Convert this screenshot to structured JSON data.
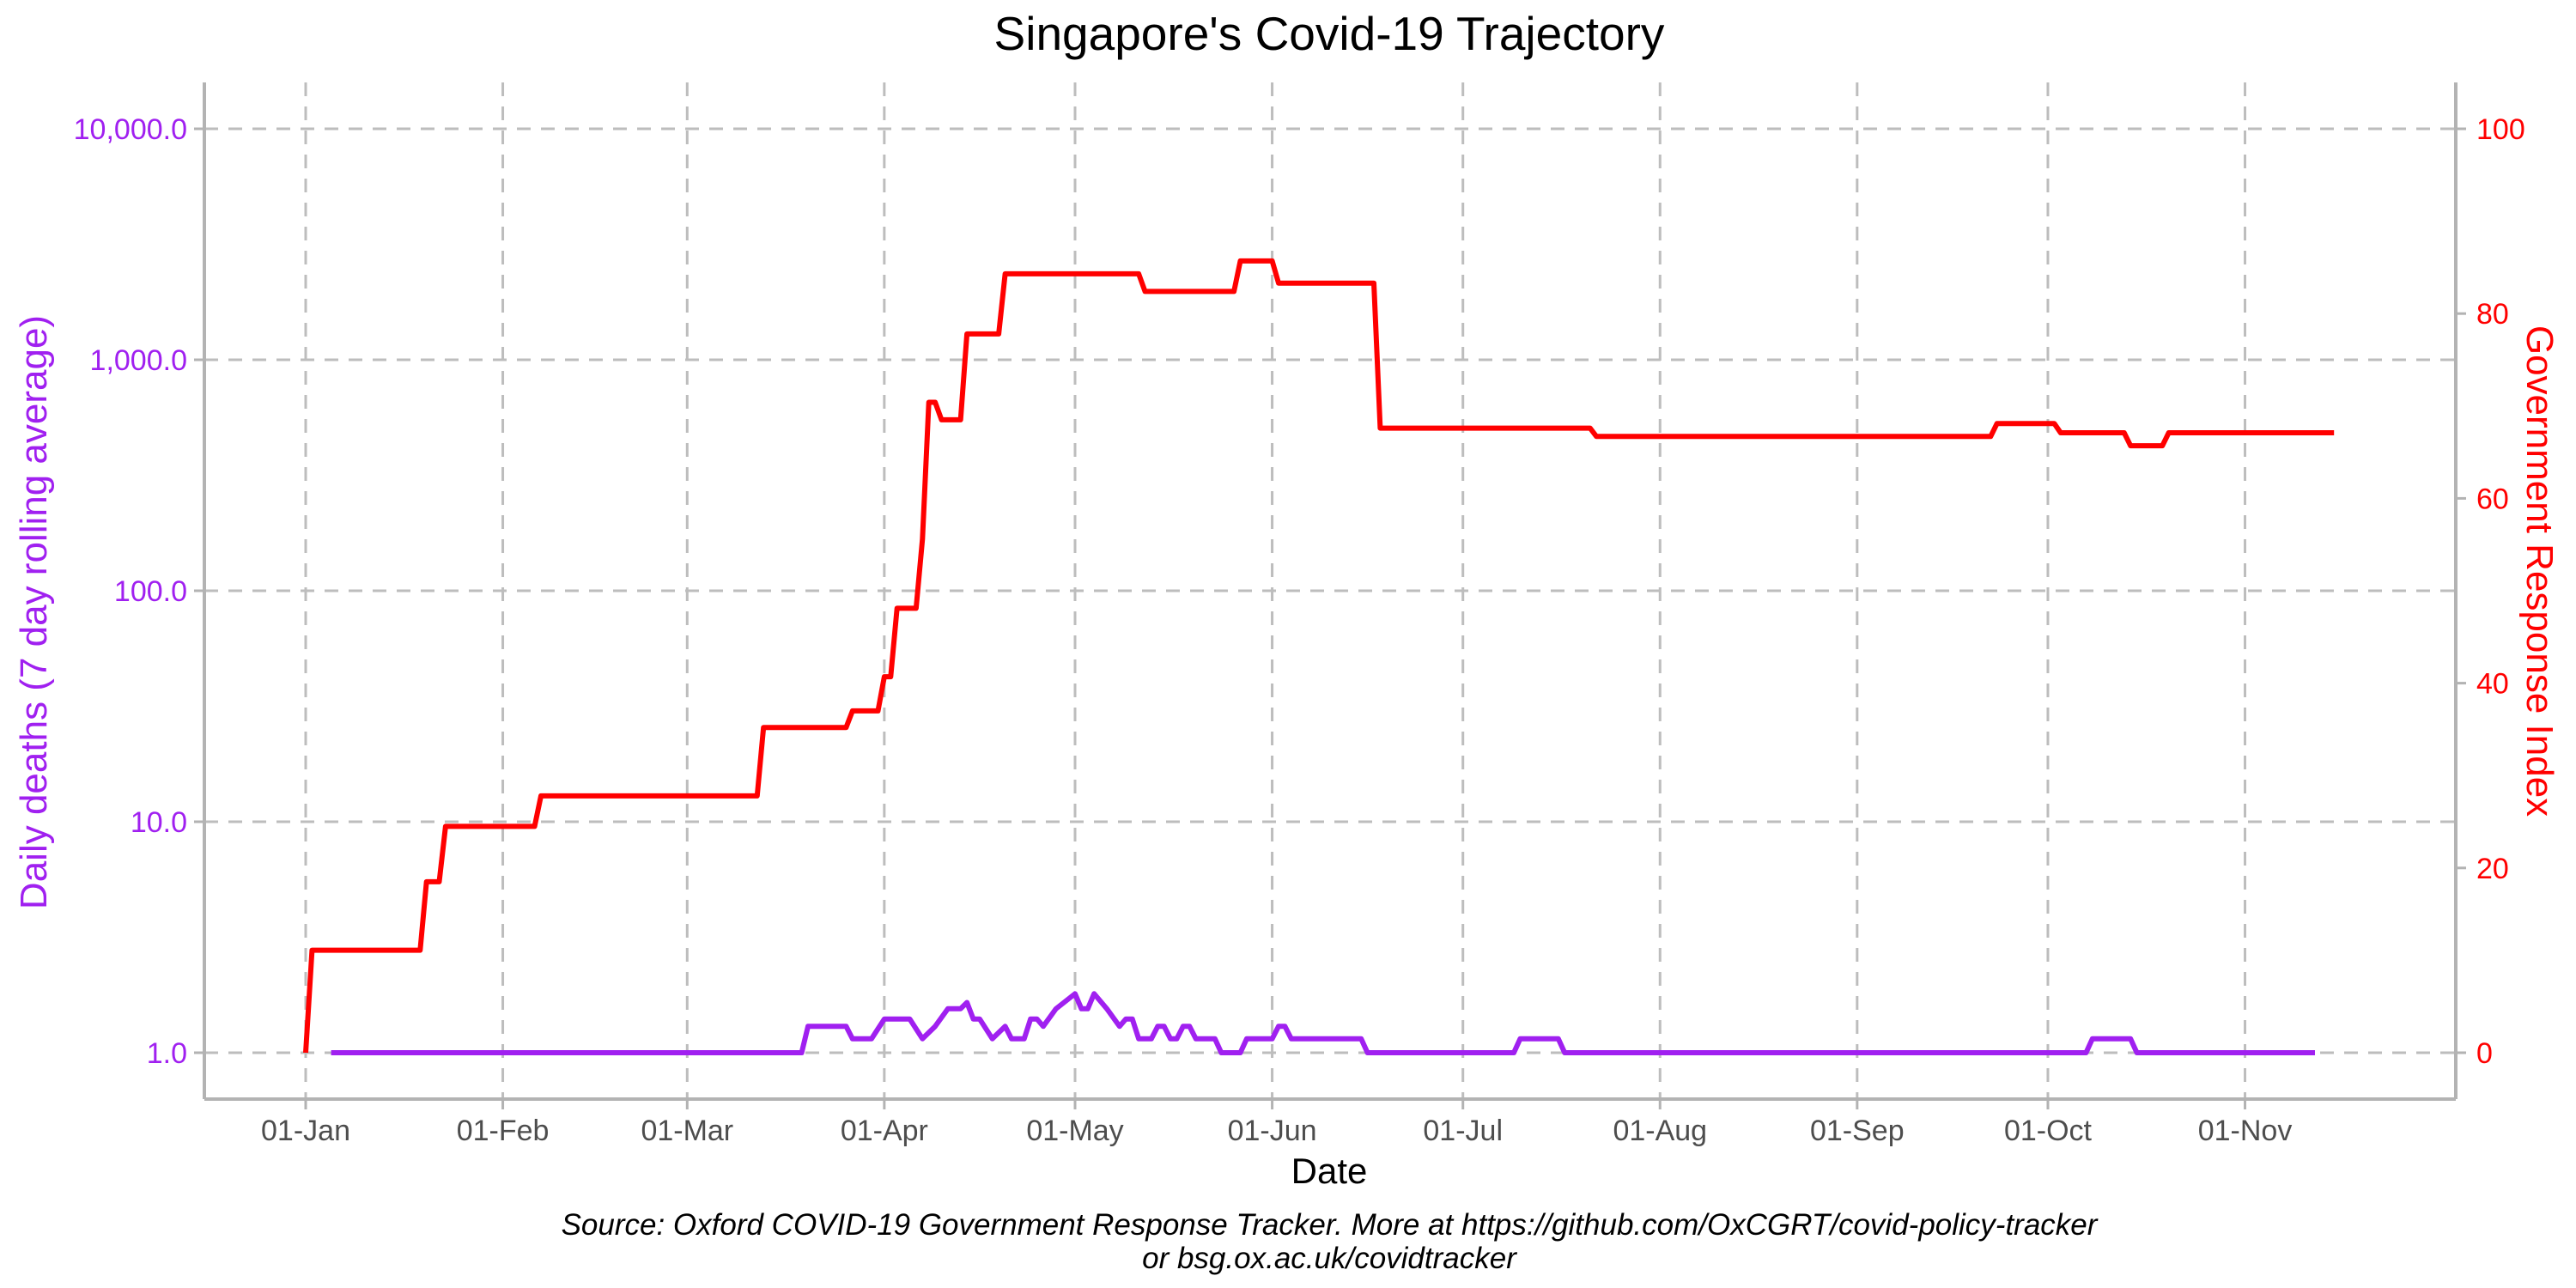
{
  "chart_data": {
    "type": "line",
    "title": "Singapore's Covid-19 Trajectory",
    "xlabel": "Date",
    "ylabel_left": "Daily deaths (7 day rolling average)",
    "ylabel_right": "Government Response Index",
    "caption_lines": [
      "Source: Oxford COVID-19 Government Response Tracker. More at https://github.com/OxCGRT/covid-policy-tracker",
      "or bsg.ox.ac.uk/covidtracker"
    ],
    "x_ticks": [
      {
        "label": "01-Jan",
        "day": 0
      },
      {
        "label": "01-Feb",
        "day": 31
      },
      {
        "label": "01-Mar",
        "day": 60
      },
      {
        "label": "01-Apr",
        "day": 91
      },
      {
        "label": "01-May",
        "day": 121
      },
      {
        "label": "01-Jun",
        "day": 152
      },
      {
        "label": "01-Jul",
        "day": 182
      },
      {
        "label": "01-Aug",
        "day": 213
      },
      {
        "label": "01-Sep",
        "day": 244
      },
      {
        "label": "01-Oct",
        "day": 274
      },
      {
        "label": "01-Nov",
        "day": 305
      }
    ],
    "y_left": {
      "scale": "log10",
      "range": [
        1,
        10000
      ],
      "ticks": [
        {
          "value": 1,
          "label": "1.0"
        },
        {
          "value": 10,
          "label": "10.0"
        },
        {
          "value": 100,
          "label": "100.0"
        },
        {
          "value": 1000,
          "label": "1,000.0"
        },
        {
          "value": 10000,
          "label": "10,000.0"
        }
      ]
    },
    "y_right": {
      "range": [
        0,
        100
      ],
      "ticks": [
        {
          "value": 0,
          "label": "0"
        },
        {
          "value": 20,
          "label": "20"
        },
        {
          "value": 40,
          "label": "40"
        },
        {
          "value": 60,
          "label": "60"
        },
        {
          "value": 80,
          "label": "80"
        },
        {
          "value": 100,
          "label": "100"
        }
      ]
    },
    "grid": true,
    "series": [
      {
        "id": "daily_deaths",
        "axis": "left",
        "color": "#a020f0",
        "points": [
          [
            4,
            1.0
          ],
          [
            78,
            1.0
          ],
          [
            79,
            1.3
          ],
          [
            85,
            1.3
          ],
          [
            86,
            1.15
          ],
          [
            89,
            1.15
          ],
          [
            91,
            1.4
          ],
          [
            95,
            1.4
          ],
          [
            97,
            1.15
          ],
          [
            99,
            1.3
          ],
          [
            101,
            1.55
          ],
          [
            103,
            1.55
          ],
          [
            104,
            1.65
          ],
          [
            105,
            1.4
          ],
          [
            106,
            1.4
          ],
          [
            108,
            1.15
          ],
          [
            110,
            1.3
          ],
          [
            111,
            1.15
          ],
          [
            113,
            1.15
          ],
          [
            114,
            1.4
          ],
          [
            115,
            1.4
          ],
          [
            116,
            1.3
          ],
          [
            118,
            1.55
          ],
          [
            121,
            1.8
          ],
          [
            122,
            1.55
          ],
          [
            123,
            1.55
          ],
          [
            124,
            1.8
          ],
          [
            126,
            1.55
          ],
          [
            128,
            1.3
          ],
          [
            129,
            1.4
          ],
          [
            130,
            1.4
          ],
          [
            131,
            1.15
          ],
          [
            133,
            1.15
          ],
          [
            134,
            1.3
          ],
          [
            135,
            1.3
          ],
          [
            136,
            1.15
          ],
          [
            137,
            1.15
          ],
          [
            138,
            1.3
          ],
          [
            139,
            1.3
          ],
          [
            140,
            1.15
          ],
          [
            143,
            1.15
          ],
          [
            144,
            1.0
          ],
          [
            147,
            1.0
          ],
          [
            148,
            1.15
          ],
          [
            152,
            1.15
          ],
          [
            153,
            1.3
          ],
          [
            154,
            1.3
          ],
          [
            155,
            1.15
          ],
          [
            166,
            1.15
          ],
          [
            167,
            1.0
          ],
          [
            190,
            1.0
          ],
          [
            191,
            1.15
          ],
          [
            197,
            1.15
          ],
          [
            198,
            1.0
          ],
          [
            280,
            1.0
          ],
          [
            281,
            1.15
          ],
          [
            287,
            1.15
          ],
          [
            288,
            1.0
          ],
          [
            316,
            1.0
          ]
        ]
      },
      {
        "id": "government_response_index",
        "axis": "right",
        "color": "#ff0000",
        "points": [
          [
            0,
            0
          ],
          [
            1,
            11.1
          ],
          [
            18,
            11.1
          ],
          [
            19,
            18.5
          ],
          [
            21,
            18.5
          ],
          [
            22,
            24.5
          ],
          [
            36,
            24.5
          ],
          [
            37,
            27.8
          ],
          [
            71,
            27.8
          ],
          [
            72,
            35.2
          ],
          [
            85,
            35.2
          ],
          [
            86,
            37
          ],
          [
            90,
            37
          ],
          [
            91,
            40.7
          ],
          [
            92,
            40.7
          ],
          [
            93,
            48.1
          ],
          [
            96,
            48.1
          ],
          [
            97,
            55.6
          ],
          [
            98,
            70.4
          ],
          [
            99,
            70.4
          ],
          [
            100,
            68.5
          ],
          [
            103,
            68.5
          ],
          [
            104,
            77.8
          ],
          [
            109,
            77.8
          ],
          [
            110,
            84.3
          ],
          [
            131,
            84.3
          ],
          [
            132,
            82.4
          ],
          [
            146,
            82.4
          ],
          [
            147,
            85.7
          ],
          [
            152,
            85.7
          ],
          [
            153,
            83.3
          ],
          [
            168,
            83.3
          ],
          [
            169,
            67.6
          ],
          [
            202,
            67.6
          ],
          [
            203,
            66.7
          ],
          [
            265,
            66.7
          ],
          [
            266,
            68.1
          ],
          [
            275,
            68.1
          ],
          [
            276,
            67.1
          ],
          [
            286,
            67.1
          ],
          [
            287,
            65.7
          ],
          [
            292,
            65.7
          ],
          [
            293,
            67.1
          ],
          [
            319,
            67.1
          ]
        ]
      }
    ]
  }
}
